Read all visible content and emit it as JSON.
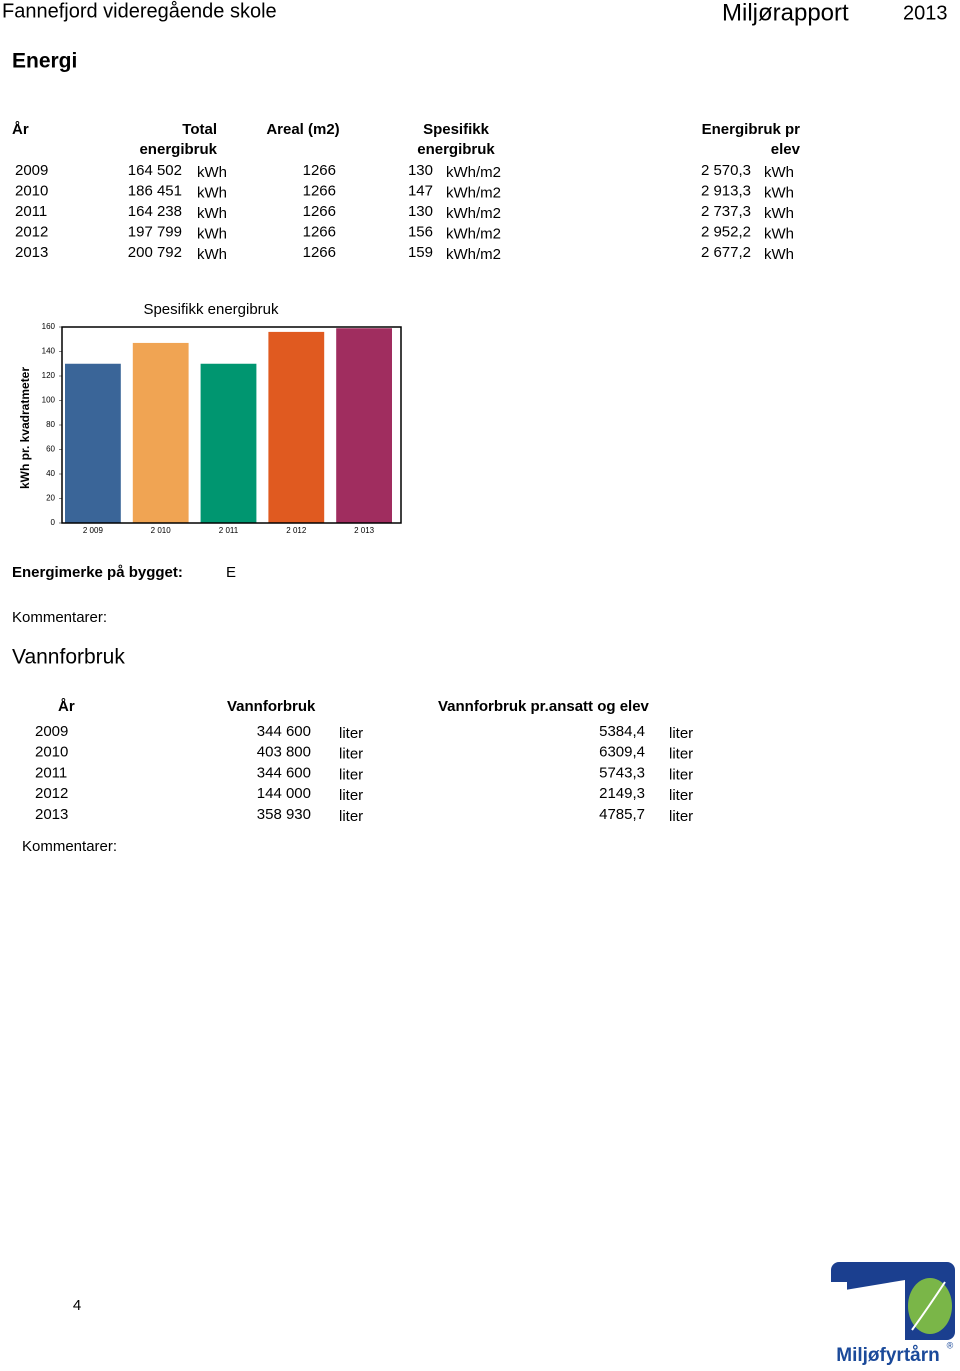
{
  "header": {
    "school": "Fannefjord videregående skole",
    "report": "Miljørapport",
    "year": "2013"
  },
  "energy": {
    "title": "Energi",
    "headers": [
      [
        "År"
      ],
      [
        "Total",
        "energibruk"
      ],
      [
        "Areal (m2)"
      ],
      [
        "Spesifikk",
        "energibruk"
      ],
      [
        "Energibruk pr",
        "elev"
      ]
    ],
    "rows": [
      [
        "2009",
        "164 502",
        "kWh",
        "1266",
        "130",
        "kWh/m2",
        "2 570,3",
        "kWh"
      ],
      [
        "2010",
        "186 451",
        "kWh",
        "1266",
        "147",
        "kWh/m2",
        "2 913,3",
        "kWh"
      ],
      [
        "2011",
        "164 238",
        "kWh",
        "1266",
        "130",
        "kWh/m2",
        "2 737,3",
        "kWh"
      ],
      [
        "2012",
        "197 799",
        "kWh",
        "1266",
        "156",
        "kWh/m2",
        "2 952,2",
        "kWh"
      ],
      [
        "2013",
        "200 792",
        "kWh",
        "1266",
        "159",
        "kWh/m2",
        "2 677,2",
        "kWh"
      ]
    ],
    "label": "Energimerke på bygget:",
    "label_value": "E",
    "comments": "Kommentarer:"
  },
  "chart_data": {
    "type": "bar",
    "title": "Spesifikk energibruk",
    "y_label": "kWh pr. kvadratmeter",
    "categories": [
      "2 009",
      "2 010",
      "2 011",
      "2 012",
      "2 013"
    ],
    "values": [
      130,
      147,
      130,
      156,
      159
    ],
    "colors": [
      "#3a6598",
      "#f0a453",
      "#009670",
      "#e05a20",
      "#a02d5f"
    ],
    "ylim": [
      0,
      160
    ],
    "yticks": [
      0,
      20,
      40,
      60,
      80,
      100,
      120,
      140,
      160
    ]
  },
  "water": {
    "title": "Vannforbruk",
    "headers": [
      "År",
      "Vannforbruk",
      "Vannforbruk pr.ansatt og elev"
    ],
    "rows": [
      [
        "2009",
        "344 600",
        "liter",
        "5384,4",
        "liter"
      ],
      [
        "2010",
        "403 800",
        "liter",
        "6309,4",
        "liter"
      ],
      [
        "2011",
        "344 600",
        "liter",
        "5743,3",
        "liter"
      ],
      [
        "2012",
        "144 000",
        "liter",
        "2149,3",
        "liter"
      ],
      [
        "2013",
        "358 930",
        "liter",
        "4785,7",
        "liter"
      ]
    ],
    "comments": "Kommentarer:"
  },
  "footer": {
    "page": "4",
    "logo": "Miljøfyrtårn",
    "logo_mark": "®"
  }
}
